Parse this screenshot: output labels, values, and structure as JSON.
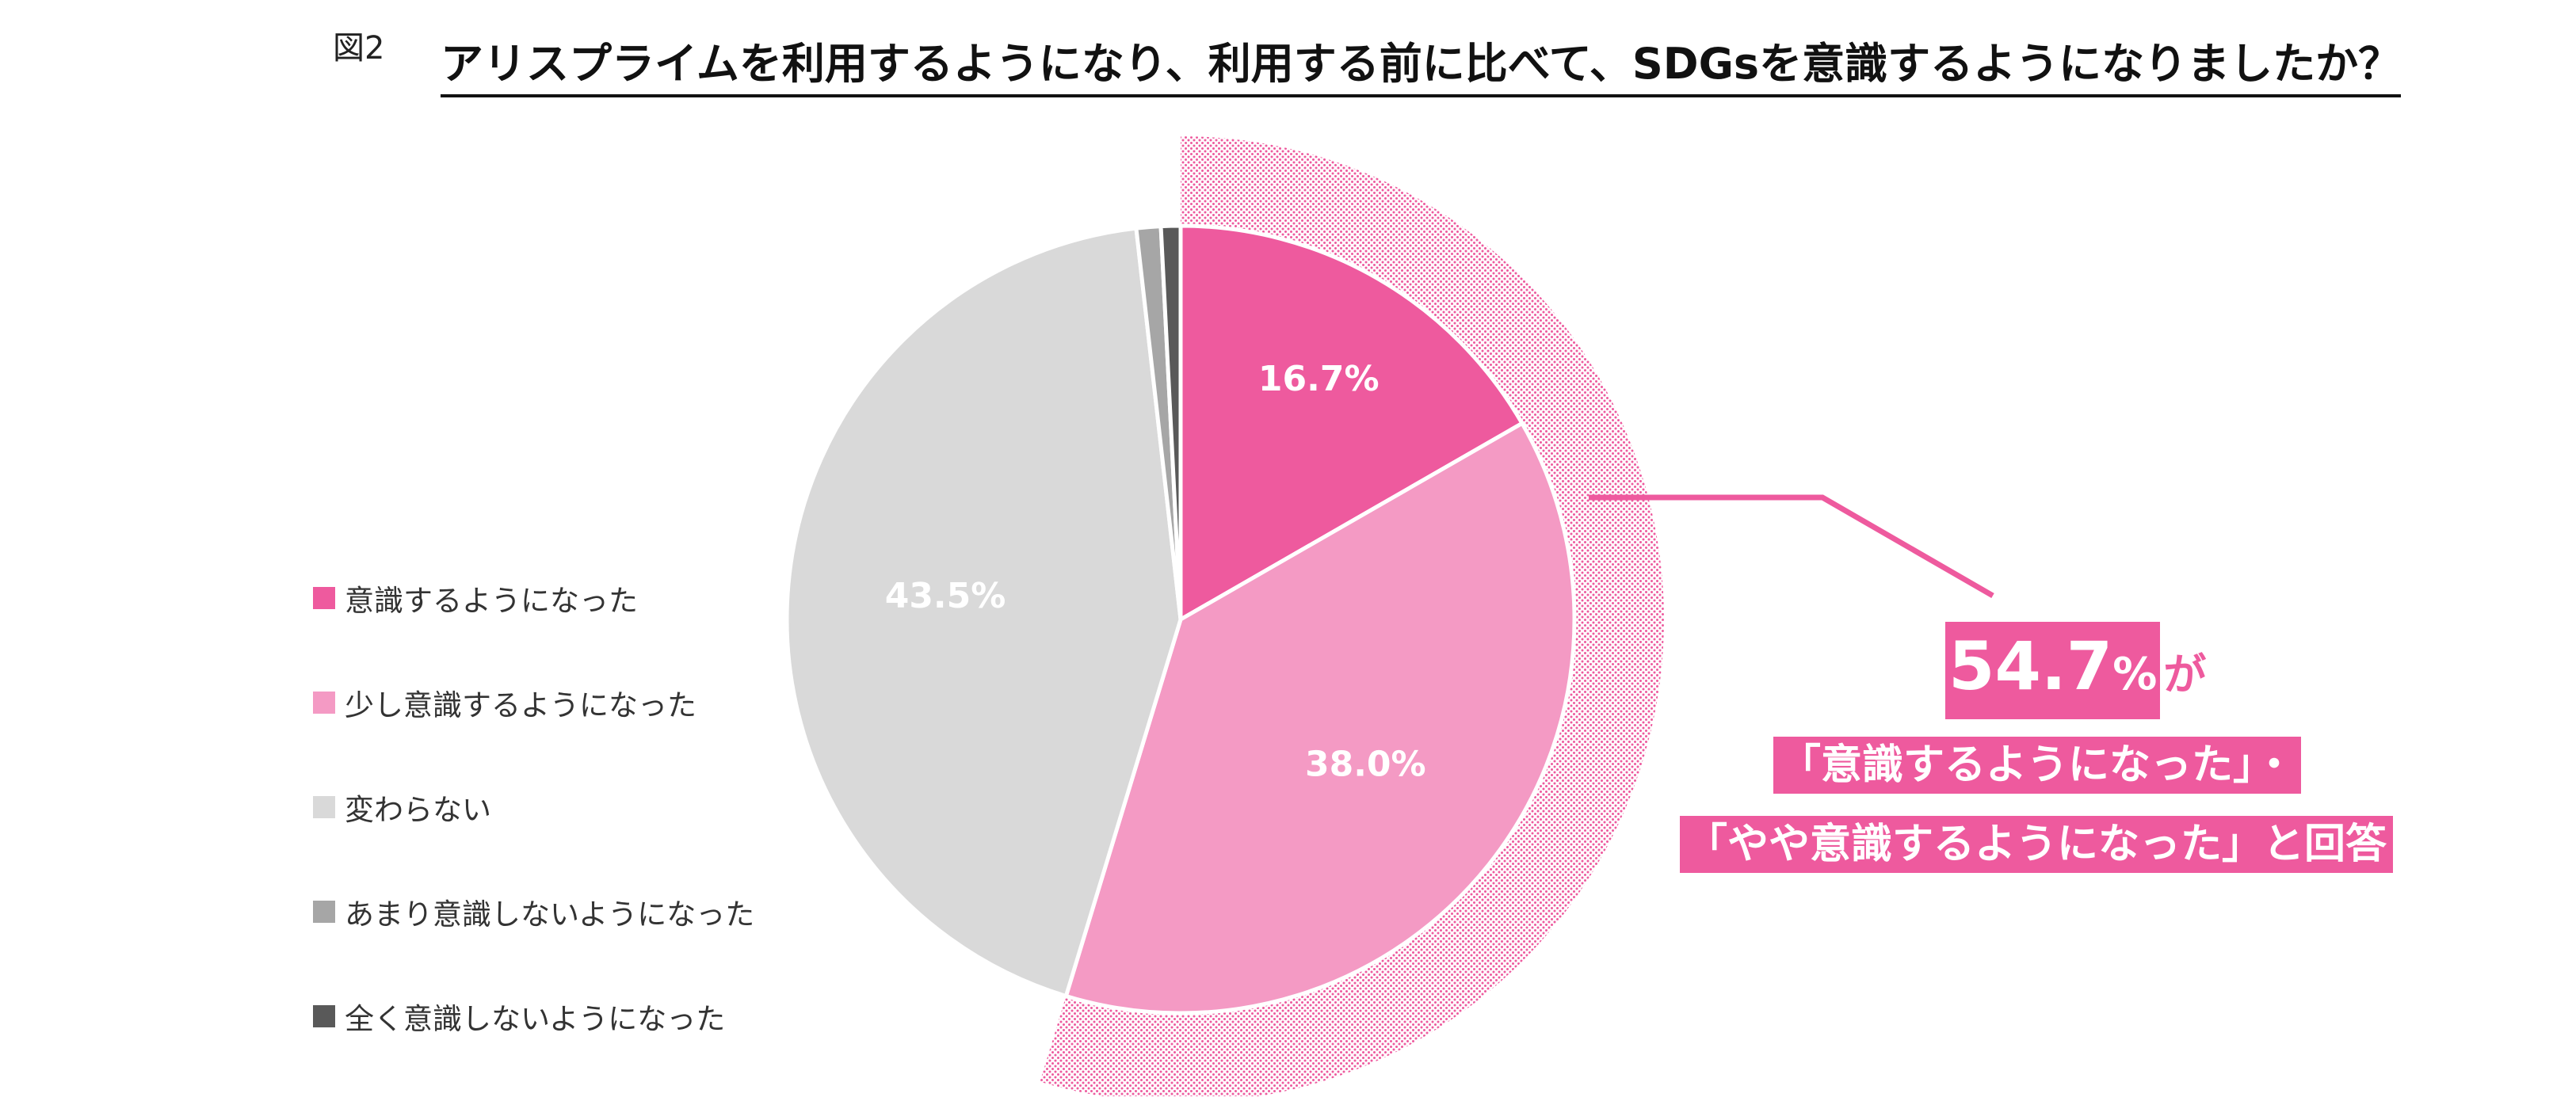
{
  "figure_label": "図2",
  "title": "アリスプライムを利用するようになり、利用する前に比べて、SDGsを意識するようになりましたか？",
  "chart_data": {
    "type": "pie",
    "categories": [
      "意識するようになった",
      "少し意識するようになった",
      "変わらない",
      "あまり意識しないようになった",
      "全く意識しないようになった"
    ],
    "values": [
      16.7,
      38.0,
      43.5,
      1.0,
      0.8
    ],
    "data_labels": [
      "16.7%",
      "38.0%",
      "43.5%",
      "",
      ""
    ],
    "colors": [
      "#ee5a9e",
      "#f49ac4",
      "#d9d9d9",
      "#a6a6a6",
      "#595959"
    ],
    "legend_position": "left"
  },
  "callout": {
    "percent": "54.7",
    "percent_unit": "%",
    "suffix": "が",
    "line1": "「意識するようになった」・",
    "line2": "「やや意識するようになった」と回答",
    "color": "#ee5a9e"
  }
}
